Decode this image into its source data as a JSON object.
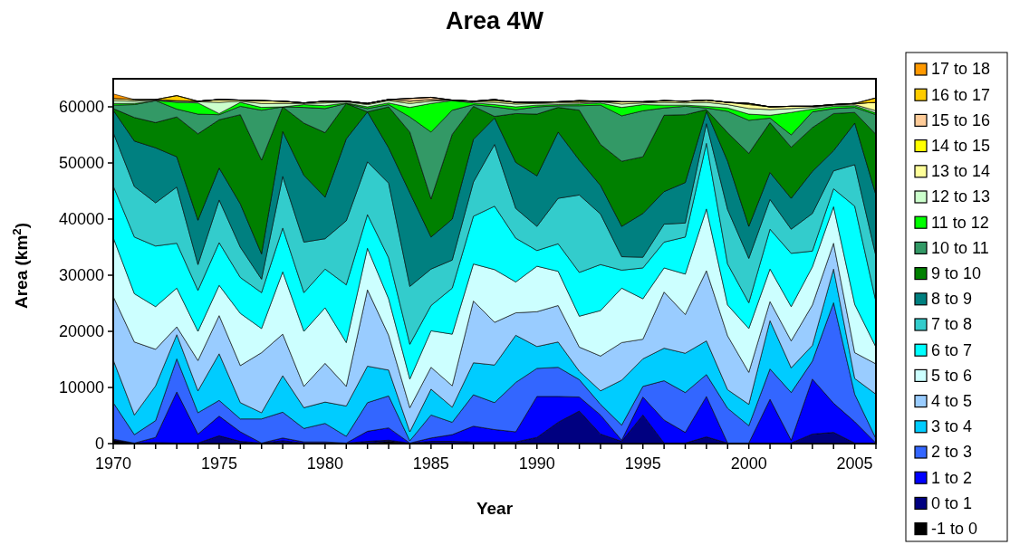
{
  "chart_data": {
    "type": "area",
    "stacked": true,
    "title": "Area 4W",
    "xlabel": "Year",
    "ylabel": "Area (km$^{2}$)",
    "legend": "right",
    "x": [
      1970,
      1971,
      1972,
      1973,
      1974,
      1975,
      1976,
      1977,
      1978,
      1979,
      1980,
      1981,
      1982,
      1983,
      1984,
      1985,
      1986,
      1987,
      1988,
      1989,
      1990,
      1991,
      1992,
      1993,
      1994,
      1995,
      1996,
      1997,
      1998,
      1999,
      2000,
      2001,
      2002,
      2003,
      2004,
      2005,
      2006
    ],
    "xlim": [
      1970,
      2006
    ],
    "xticks": [
      1970,
      1975,
      1980,
      1985,
      1990,
      1995,
      2000,
      2005
    ],
    "ylim": [
      0,
      65000
    ],
    "yticks": [
      0,
      10000,
      20000,
      30000,
      40000,
      50000,
      60000
    ],
    "series": [
      {
        "name": "-1 to 0",
        "color": "#000000",
        "values": [
          600,
          0,
          0,
          0,
          0,
          0,
          0,
          0,
          0,
          0,
          0,
          0,
          0,
          400,
          0,
          0,
          0,
          0,
          0,
          0,
          0,
          0,
          0,
          0,
          0,
          0,
          0,
          0,
          0,
          0,
          0,
          0,
          0,
          0,
          0,
          0,
          0
        ]
      },
      {
        "name": "0 to 1",
        "color": "#000080",
        "values": [
          0,
          100,
          200,
          100,
          100,
          1400,
          400,
          100,
          500,
          100,
          100,
          100,
          400,
          200,
          100,
          400,
          400,
          300,
          300,
          300,
          1100,
          3800,
          5800,
          1700,
          400,
          5100,
          100,
          100,
          1200,
          100,
          100,
          100,
          100,
          1700,
          2000,
          100,
          100
        ]
      },
      {
        "name": "1 to 2",
        "color": "#0000ff",
        "values": [
          200,
          0,
          900,
          9100,
          1600,
          3500,
          1700,
          0,
          500,
          200,
          200,
          0,
          1800,
          2200,
          0,
          600,
          1200,
          2800,
          2200,
          1800,
          7300,
          4600,
          2500,
          3400,
          200,
          3200,
          4100,
          1900,
          7200,
          0,
          0,
          7800,
          500,
          9800,
          5200,
          3800,
          0
        ]
      },
      {
        "name": "2 to 3",
        "color": "#3366ff",
        "values": [
          6500,
          1500,
          3000,
          5900,
          3800,
          2800,
          2300,
          4300,
          4600,
          2400,
          3300,
          1200,
          5100,
          5700,
          400,
          4100,
          2200,
          5600,
          4800,
          8800,
          5000,
          5200,
          3100,
          1900,
          2700,
          1900,
          7000,
          7100,
          3900,
          6200,
          3100,
          5400,
          8500,
          3200,
          17900,
          4900,
          800
        ]
      },
      {
        "name": "3 to 4",
        "color": "#00ccff",
        "values": [
          7600,
          3500,
          6200,
          4300,
          3900,
          8300,
          2900,
          1100,
          6500,
          3700,
          3800,
          5400,
          6500,
          4600,
          1600,
          4600,
          2700,
          5700,
          6700,
          8400,
          3900,
          4500,
          1500,
          2400,
          8000,
          4900,
          5800,
          7000,
          6000,
          3300,
          3800,
          8600,
          4400,
          2800,
          6000,
          2800,
          7900
        ]
      },
      {
        "name": "4 to 5",
        "color": "#99ccff",
        "values": [
          11300,
          13000,
          6500,
          1400,
          5400,
          6800,
          6600,
          10700,
          7400,
          3800,
          6900,
          3500,
          13600,
          6200,
          4300,
          3900,
          3800,
          11000,
          7600,
          4000,
          6200,
          6500,
          4300,
          6200,
          6700,
          3500,
          10000,
          6900,
          12500,
          9600,
          5700,
          3400,
          4800,
          7200,
          4600,
          4600,
          5400
        ]
      },
      {
        "name": "5 to 6",
        "color": "#ccffff",
        "values": [
          10500,
          8600,
          7600,
          6900,
          5200,
          5400,
          9300,
          4300,
          11100,
          9800,
          9900,
          7800,
          7400,
          6500,
          5100,
          6500,
          9200,
          6600,
          9400,
          5500,
          8100,
          6100,
          5500,
          8100,
          9700,
          7200,
          4300,
          7200,
          11000,
          5500,
          7800,
          5800,
          6100,
          6800,
          6500,
          8600,
          3000
        ]
      },
      {
        "name": "6 to 7",
        "color": "#00ffff",
        "values": [
          9200,
          10100,
          10800,
          8000,
          7300,
          7600,
          6400,
          6400,
          7800,
          6900,
          6900,
          10300,
          6000,
          7300,
          6200,
          4500,
          8200,
          8500,
          11300,
          7800,
          2800,
          4900,
          7800,
          8200,
          3200,
          5500,
          4600,
          6600,
          11700,
          7300,
          4600,
          7100,
          9500,
          2800,
          3200,
          17500,
          8100
        ]
      },
      {
        "name": "7 to 8",
        "color": "#33cccc",
        "values": [
          9500,
          9000,
          7700,
          10000,
          4600,
          7600,
          5400,
          2400,
          9200,
          9000,
          5400,
          11400,
          9400,
          13300,
          10300,
          6500,
          5000,
          6100,
          11000,
          5300,
          4300,
          8100,
          13800,
          9000,
          2400,
          1900,
          3200,
          2500,
          3500,
          9700,
          7900,
          5300,
          4300,
          6700,
          3200,
          7400,
          8100
        ]
      },
      {
        "name": "8 to 9",
        "color": "#008080",
        "values": [
          4000,
          8100,
          9800,
          5400,
          7900,
          5700,
          7700,
          4500,
          8000,
          11900,
          7400,
          14600,
          8900,
          6300,
          16700,
          5700,
          7300,
          7600,
          4700,
          8200,
          9000,
          11800,
          6200,
          5100,
          5400,
          7800,
          5800,
          7200,
          2200,
          8600,
          5700,
          4800,
          5500,
          7500,
          3600,
          7400,
          10900
        ]
      },
      {
        "name": "9 to 10",
        "color": "#008000",
        "values": [
          300,
          4200,
          4500,
          7100,
          15400,
          8600,
          15900,
          16700,
          4400,
          9300,
          11500,
          6300,
          0,
          7300,
          10800,
          6800,
          15100,
          5900,
          300,
          8700,
          11000,
          4400,
          8900,
          7300,
          11600,
          10100,
          13600,
          12100,
          300,
          5100,
          13000,
          8900,
          9100,
          7800,
          6600,
          1900,
          10800
        ]
      },
      {
        "name": "10 to 11",
        "color": "#339966",
        "values": [
          600,
          2300,
          3900,
          1400,
          3500,
          900,
          1500,
          8900,
          0,
          2800,
          4300,
          0,
          600,
          400,
          2700,
          11900,
          4300,
          300,
          1700,
          700,
          1300,
          300,
          800,
          7000,
          8100,
          8200,
          1300,
          1500,
          300,
          3800,
          5900,
          800,
          2200,
          2800,
          900,
          900,
          3500
        ]
      },
      {
        "name": "11 to 12",
        "color": "#00ff00",
        "values": [
          300,
          200,
          0,
          1200,
          2000,
          200,
          700,
          500,
          0,
          500,
          500,
          100,
          300,
          300,
          1700,
          5100,
          1700,
          300,
          400,
          500,
          300,
          200,
          300,
          400,
          1500,
          1100,
          500,
          200,
          300,
          600,
          1100,
          500,
          4000,
          500,
          400,
          300,
          300
        ]
      },
      {
        "name": "12 to 13",
        "color": "#ccffcc",
        "values": [
          500,
          400,
          100,
          200,
          200,
          2000,
          200,
          700,
          600,
          200,
          500,
          200,
          400,
          400,
          700,
          400,
          100,
          200,
          400,
          500,
          300,
          300,
          200,
          200,
          600,
          300,
          500,
          400,
          700,
          600,
          1000,
          1000,
          700,
          300,
          200,
          200,
          400
        ]
      },
      {
        "name": "13 to 14",
        "color": "#ffff99",
        "values": [
          400,
          300,
          100,
          100,
          100,
          500,
          200,
          500,
          400,
          100,
          300,
          100,
          200,
          200,
          400,
          300,
          0,
          100,
          300,
          300,
          200,
          200,
          200,
          100,
          400,
          200,
          300,
          300,
          400,
          400,
          700,
          500,
          400,
          200,
          100,
          200,
          1500
        ]
      },
      {
        "name": "14 to 15",
        "color": "#ffff00",
        "values": [
          null,
          null,
          0,
          0,
          0,
          0,
          0,
          0,
          0,
          0,
          0,
          0,
          0,
          0,
          0,
          0,
          0,
          0,
          200,
          0,
          0,
          0,
          200,
          0,
          0,
          0,
          0,
          0,
          0,
          0,
          200,
          0,
          0,
          0,
          0,
          0,
          0
        ]
      },
      {
        "name": "15 to 16",
        "color": "#ffcc99",
        "values": [
          null,
          null,
          0,
          0,
          0,
          0,
          0,
          0,
          0,
          0,
          0,
          0,
          0,
          0,
          500,
          400,
          0,
          0,
          0,
          0,
          0,
          0,
          0,
          0,
          0,
          0,
          0,
          0,
          0,
          0,
          0,
          0,
          0,
          0,
          0,
          0,
          0
        ]
      },
      {
        "name": "16 to 17",
        "color": "#ffcc00",
        "values": [
          0,
          0,
          0,
          900,
          0,
          0,
          0,
          0,
          0,
          0,
          0,
          0,
          0,
          0,
          0,
          0,
          0,
          0,
          0,
          0,
          0,
          0,
          0,
          0,
          0,
          0,
          0,
          0,
          0,
          0,
          0,
          0,
          0,
          0,
          0,
          0,
          800
        ]
      },
      {
        "name": "17 to 18",
        "color": "#ff9900",
        "values": [
          800,
          0,
          0,
          0,
          0,
          0,
          0,
          0,
          0,
          0,
          0,
          0,
          0,
          0,
          0,
          0,
          0,
          0,
          0,
          0,
          0,
          0,
          0,
          0,
          0,
          0,
          0,
          0,
          0,
          0,
          0,
          0,
          0,
          0,
          0,
          0,
          0
        ]
      }
    ]
  }
}
